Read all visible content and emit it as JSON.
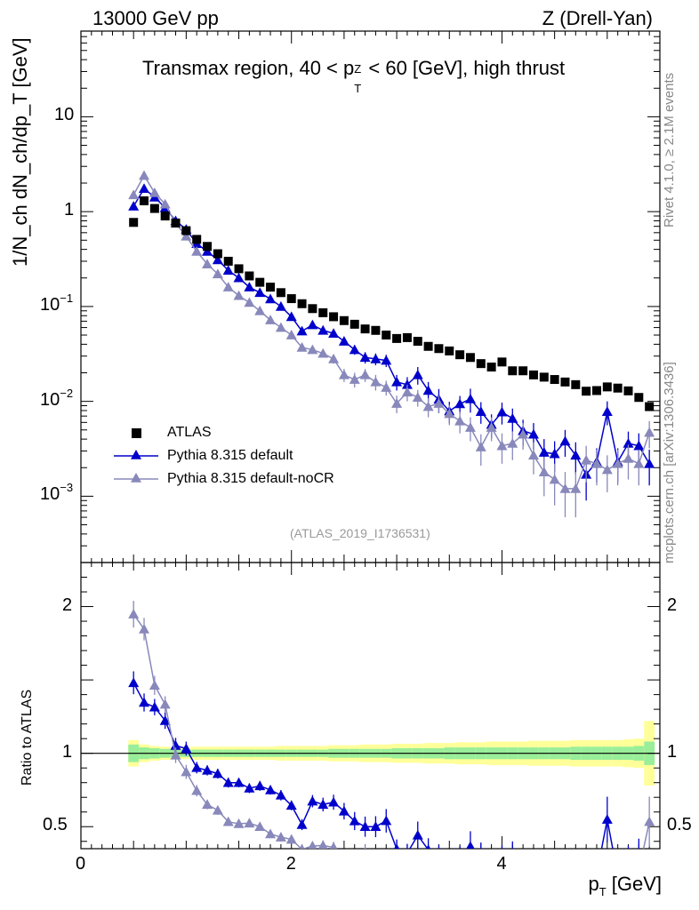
{
  "header": {
    "left": "13000 GeV pp",
    "right": "Z (Drell-Yan)"
  },
  "chart_data": {
    "type": "scatter",
    "title": "Transmax region, 40 < p_T^Z < 60 [GeV], high thrust",
    "title_parts": {
      "pre": "Transmax region, 40 < p",
      "sup": "Z",
      "sub": "T",
      "post": " < 60 [GeV], high thrust"
    },
    "xlabel": "p_T [GeV]",
    "xlabel_parts": {
      "main": "p",
      "sub": "T",
      "post": " [GeV]"
    },
    "ylabel": "1/N_ch dN_ch/dp_T [GeV]",
    "ratio_ylabel": "Ratio to ATLAS",
    "xlim": [
      0,
      5.5
    ],
    "ylim": [
      0.0002,
      80
    ],
    "yscale": "log",
    "ratio_ylim": [
      0.35,
      2.3
    ],
    "x_ticks": [
      {
        "v": 0,
        "label": "0"
      },
      {
        "v": 2,
        "label": "2"
      },
      {
        "v": 4,
        "label": "4"
      }
    ],
    "y_ticks": [
      {
        "v": 10,
        "base": "10",
        "exp": ""
      },
      {
        "v": 1,
        "base": "1",
        "exp": ""
      },
      {
        "v": 0.1,
        "base": "10",
        "exp": "−1"
      },
      {
        "v": 0.01,
        "base": "10",
        "exp": "−2"
      },
      {
        "v": 0.001,
        "base": "10",
        "exp": "−3"
      }
    ],
    "ratio_ticks": [
      {
        "v": 2,
        "label": "2"
      },
      {
        "v": 1,
        "label": "1"
      },
      {
        "v": 0.5,
        "label": "0.5"
      }
    ],
    "x": [
      0.5,
      0.6,
      0.7,
      0.8,
      0.9,
      1.0,
      1.1,
      1.2,
      1.3,
      1.4,
      1.5,
      1.6,
      1.7,
      1.8,
      1.9,
      2.0,
      2.1,
      2.2,
      2.3,
      2.4,
      2.5,
      2.6,
      2.7,
      2.8,
      2.9,
      3.0,
      3.1,
      3.2,
      3.3,
      3.4,
      3.5,
      3.6,
      3.7,
      3.8,
      3.9,
      4.0,
      4.1,
      4.2,
      4.3,
      4.4,
      4.5,
      4.6,
      4.7,
      4.8,
      4.9,
      5.0,
      5.1,
      5.2,
      5.3,
      5.4
    ],
    "series": [
      {
        "name": "ATLAS",
        "marker": "square",
        "color": "#000000",
        "values": [
          0.77,
          1.3,
          1.08,
          0.9,
          0.76,
          0.63,
          0.51,
          0.43,
          0.36,
          0.3,
          0.25,
          0.21,
          0.18,
          0.16,
          0.14,
          0.121,
          0.107,
          0.095,
          0.086,
          0.078,
          0.071,
          0.065,
          0.058,
          0.056,
          0.05,
          0.046,
          0.047,
          0.043,
          0.038,
          0.036,
          0.034,
          0.031,
          0.029,
          0.025,
          0.023,
          0.026,
          0.021,
          0.021,
          0.019,
          0.018,
          0.017,
          0.016,
          0.015,
          0.0128,
          0.013,
          0.0142,
          0.0138,
          0.0129,
          0.011,
          0.0088
        ]
      },
      {
        "name": "Pythia 8.315 default",
        "marker": "triangle",
        "color": "#0000cc",
        "values": [
          1.14,
          1.75,
          1.42,
          1.1,
          0.8,
          0.65,
          0.46,
          0.38,
          0.31,
          0.24,
          0.2,
          0.16,
          0.14,
          0.12,
          0.1,
          0.078,
          0.055,
          0.064,
          0.056,
          0.052,
          0.043,
          0.035,
          0.029,
          0.028,
          0.027,
          0.016,
          0.015,
          0.019,
          0.013,
          0.0105,
          0.0079,
          0.0094,
          0.0106,
          0.0078,
          0.0057,
          0.0077,
          0.0066,
          0.0049,
          0.0045,
          0.0029,
          0.0028,
          0.0038,
          0.0027,
          0.0017,
          0.0023,
          0.0078,
          0.0023,
          0.0036,
          0.0034,
          0.0022
        ],
        "errors": [
          0.06,
          0.08,
          0.06,
          0.05,
          0.04,
          0.03,
          0.02,
          0.015,
          0.012,
          0.01,
          0.008,
          0.007,
          0.006,
          0.005,
          0.005,
          0.004,
          0.004,
          0.004,
          0.004,
          0.004,
          0.004,
          0.004,
          0.004,
          0.004,
          0.004,
          0.003,
          0.003,
          0.004,
          0.003,
          0.003,
          0.002,
          0.002,
          0.003,
          0.002,
          0.0016,
          0.002,
          0.0018,
          0.0015,
          0.0014,
          0.0011,
          0.001,
          0.0012,
          0.001,
          0.0008,
          0.0009,
          0.0022,
          0.0009,
          0.0012,
          0.0012,
          0.0009
        ]
      },
      {
        "name": "Pythia 8.315 default-noCR",
        "marker": "triangle",
        "color": "#8888bb",
        "values": [
          1.5,
          2.4,
          1.58,
          1.2,
          0.75,
          0.55,
          0.38,
          0.28,
          0.22,
          0.16,
          0.13,
          0.11,
          0.09,
          0.072,
          0.06,
          0.05,
          0.037,
          0.035,
          0.032,
          0.028,
          0.019,
          0.017,
          0.019,
          0.016,
          0.014,
          0.0095,
          0.0125,
          0.011,
          0.0088,
          0.0095,
          0.0074,
          0.0062,
          0.0053,
          0.0033,
          0.0053,
          0.0034,
          0.0036,
          0.0045,
          0.0027,
          0.0018,
          0.0015,
          0.0012,
          0.0012,
          0.0024,
          0.0022,
          0.0019,
          0.0022,
          0.0025,
          0.0022,
          0.0047
        ],
        "errors": [
          0.07,
          0.1,
          0.07,
          0.05,
          0.04,
          0.03,
          0.02,
          0.014,
          0.011,
          0.008,
          0.007,
          0.006,
          0.005,
          0.004,
          0.004,
          0.003,
          0.003,
          0.003,
          0.003,
          0.003,
          0.003,
          0.003,
          0.003,
          0.003,
          0.0025,
          0.002,
          0.0025,
          0.0022,
          0.002,
          0.002,
          0.0018,
          0.0016,
          0.0015,
          0.0012,
          0.0015,
          0.0012,
          0.0012,
          0.0014,
          0.001,
          0.0008,
          0.0007,
          0.0006,
          0.0006,
          0.001,
          0.0009,
          0.0008,
          0.0009,
          0.001,
          0.0009,
          0.0015
        ]
      }
    ],
    "ratio_band": {
      "stat": [
        0.06,
        0.04,
        0.035,
        0.03,
        0.025,
        0.025,
        0.025,
        0.025,
        0.025,
        0.025,
        0.025,
        0.025,
        0.025,
        0.025,
        0.025,
        0.025,
        0.025,
        0.025,
        0.025,
        0.03,
        0.03,
        0.03,
        0.03,
        0.03,
        0.03,
        0.035,
        0.035,
        0.035,
        0.035,
        0.035,
        0.04,
        0.04,
        0.04,
        0.04,
        0.04,
        0.04,
        0.04,
        0.04,
        0.04,
        0.04,
        0.04,
        0.04,
        0.045,
        0.045,
        0.045,
        0.045,
        0.045,
        0.045,
        0.05,
        0.08
      ],
      "total": [
        0.09,
        0.06,
        0.05,
        0.045,
        0.04,
        0.04,
        0.045,
        0.045,
        0.045,
        0.045,
        0.045,
        0.045,
        0.045,
        0.045,
        0.05,
        0.05,
        0.05,
        0.05,
        0.05,
        0.055,
        0.055,
        0.055,
        0.06,
        0.06,
        0.06,
        0.065,
        0.065,
        0.065,
        0.07,
        0.07,
        0.07,
        0.075,
        0.075,
        0.075,
        0.08,
        0.08,
        0.08,
        0.08,
        0.085,
        0.085,
        0.085,
        0.085,
        0.09,
        0.09,
        0.09,
        0.09,
        0.09,
        0.095,
        0.1,
        0.22
      ]
    },
    "legend": [
      "ATLAS",
      "Pythia 8.315 default",
      "Pythia 8.315 default-noCR"
    ],
    "analysis_label": "(ATLAS_2019_I1736531)",
    "side_labels": {
      "rivet": "Rivet 4.1.0, ≥ 2.1M events",
      "mcplots": "mcplots.cern.ch [arXiv:1306.3436]"
    },
    "colors": {
      "band_stat": "#99ee99",
      "band_total": "#ffff99"
    }
  }
}
